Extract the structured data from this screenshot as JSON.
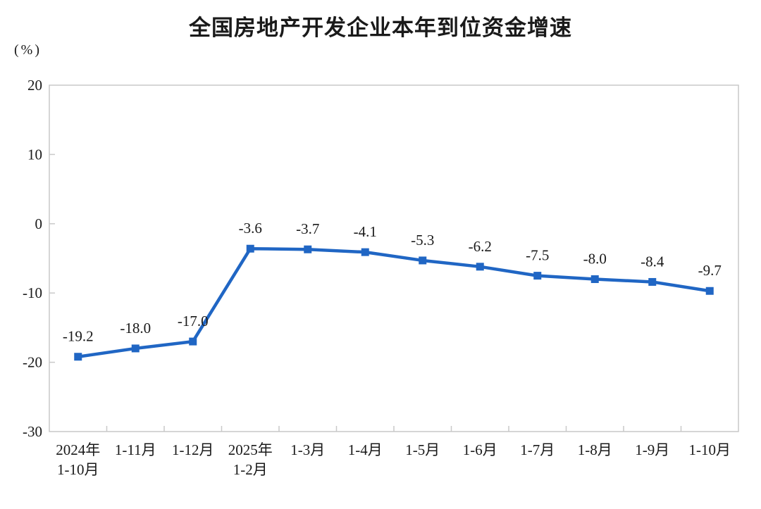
{
  "title": "全国房地产开发企业本年到位资金增速",
  "unit_label": "(%)",
  "chart_data": {
    "type": "line",
    "title": "全国房地产开发企业本年到位资金增速",
    "ylabel": "(%)",
    "xlabel": "",
    "categories": [
      "2024年\n1-10月",
      "1-11月",
      "1-12月",
      "2025年\n1-2月",
      "1-3月",
      "1-4月",
      "1-5月",
      "1-6月",
      "1-7月",
      "1-8月",
      "1-9月",
      "1-10月"
    ],
    "values": [
      -19.2,
      -18.0,
      -17.0,
      -3.6,
      -3.7,
      -4.1,
      -5.3,
      -6.2,
      -7.5,
      -8.0,
      -8.4,
      -9.7
    ],
    "data_labels": [
      "-19.2",
      "-18.0",
      "-17.0",
      "-3.6",
      "-3.7",
      "-4.1",
      "-5.3",
      "-6.2",
      "-7.5",
      "-8.0",
      "-8.4",
      "-9.7"
    ],
    "ylim": [
      -30,
      20
    ],
    "yticks": [
      20,
      10,
      0,
      -10,
      -20,
      -30
    ],
    "grid": false,
    "legend": "none",
    "marker": "square",
    "line_color": "#2066C4",
    "border_color": "#c9c9c9",
    "text_color": "#1a1a1a"
  }
}
